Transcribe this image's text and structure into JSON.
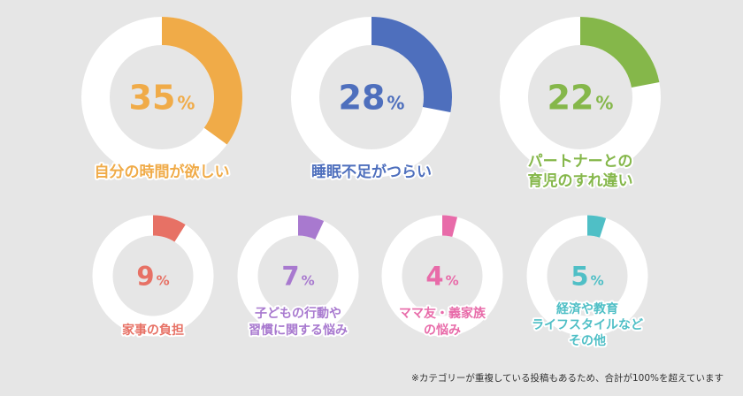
{
  "chart_data": {
    "type": "pie",
    "items": [
      {
        "value": 35,
        "label_lines": [
          "自分の時間が欲しい"
        ],
        "color": "#f0ab48"
      },
      {
        "value": 28,
        "label_lines": [
          "睡眠不足がつらい"
        ],
        "color": "#4e6fbd"
      },
      {
        "value": 22,
        "label_lines": [
          "パートナーとの",
          "育児のすれ違い"
        ],
        "color": "#85b74a"
      },
      {
        "value": 9,
        "label_lines": [
          "家事の負担"
        ],
        "color": "#e77165"
      },
      {
        "value": 7,
        "label_lines": [
          "子どもの行動や",
          "習慣に関する悩み"
        ],
        "color": "#a879cf"
      },
      {
        "value": 4,
        "label_lines": [
          "ママ友・義家族",
          "の悩み"
        ],
        "color": "#e86ba9"
      },
      {
        "value": 5,
        "label_lines": [
          "経済や教育",
          "ライフスタイルなど",
          "その他"
        ],
        "color": "#4fbfc6"
      }
    ],
    "unit": "%"
  },
  "footnote": "※カテゴリーが重複している投稿もあるため、合計が100%を超えています"
}
